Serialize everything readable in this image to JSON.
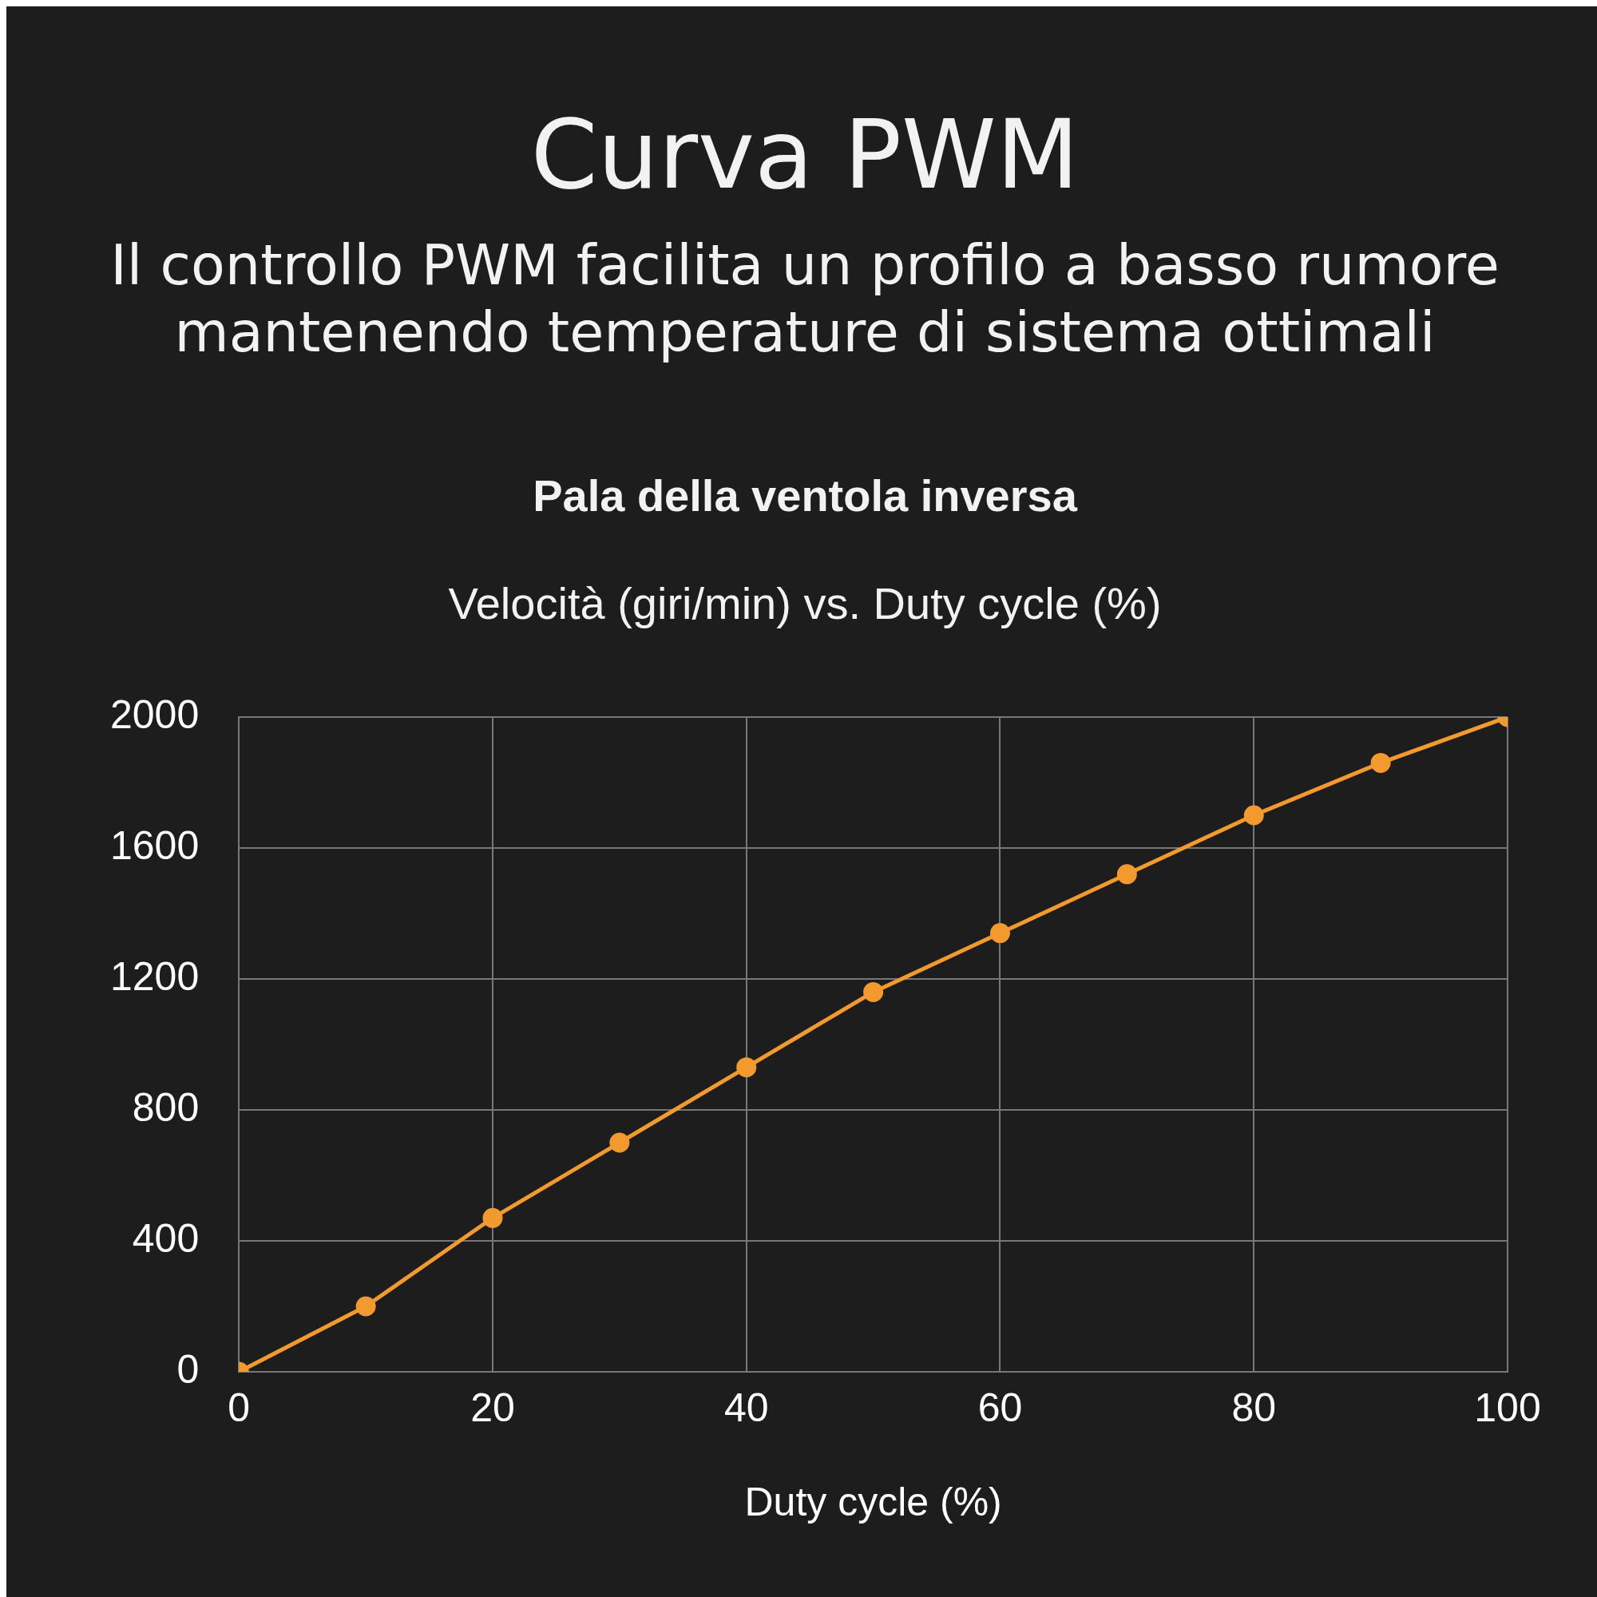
{
  "chart_data": {
    "type": "line",
    "title": "Curva PWM",
    "subtitle": "Il controllo PWM facilita un profilo a basso rumore mantenendo temperature di sistema ottimali",
    "annotations": [
      "Pala della ventola inversa",
      "Velocità (giri/min) vs. Duty cycle (%)"
    ],
    "xlabel": "Duty cycle (%)",
    "x": [
      0,
      10,
      20,
      30,
      40,
      50,
      60,
      70,
      80,
      90,
      100
    ],
    "series": [
      {
        "color": "#f29a2e",
        "values": [
          0,
          200,
          470,
          700,
          930,
          1160,
          1340,
          1520,
          1700,
          1860,
          2000
        ]
      }
    ],
    "xlim": [
      0,
      100
    ],
    "xticks": [
      0,
      20,
      40,
      60,
      80,
      100
    ],
    "ylim": [
      0,
      2000
    ],
    "yticks": [
      0,
      400,
      800,
      1200,
      1600,
      2000
    ],
    "grid": true,
    "legend": false,
    "marker": "circle",
    "line_style": "solid"
  }
}
